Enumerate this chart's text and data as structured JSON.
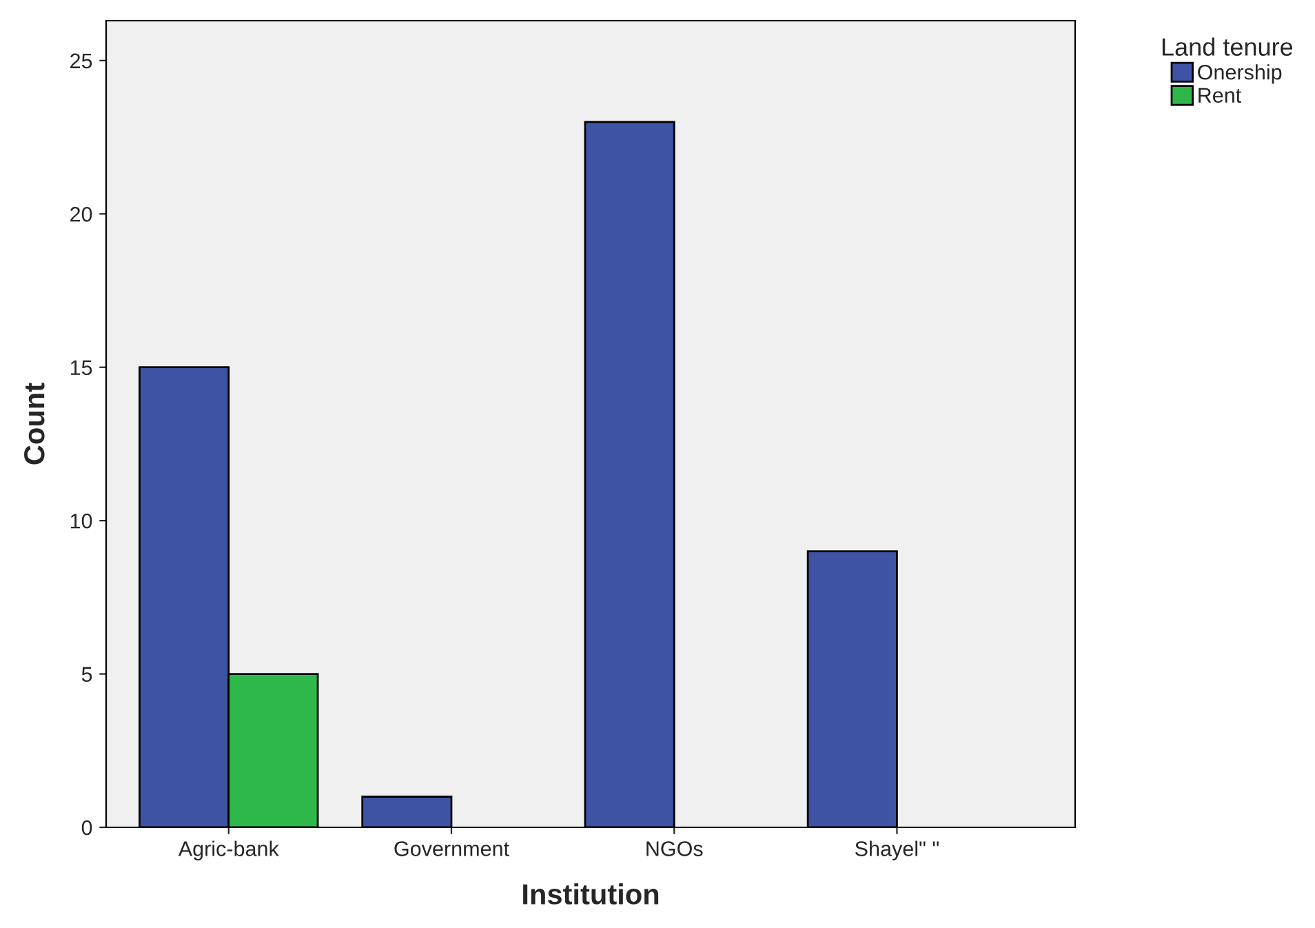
{
  "chart_data": {
    "type": "bar",
    "xlabel": "Institution",
    "ylabel": "Count",
    "legend_title": "Land tenure",
    "categories": [
      "Agric-bank",
      "Government",
      "NGOs",
      "Shayel\" \""
    ],
    "series": [
      {
        "name": "Onership",
        "color": "#3e53a4",
        "values": [
          15,
          1,
          23,
          9
        ]
      },
      {
        "name": "Rent",
        "color": "#2fb84a",
        "values": [
          5,
          null,
          null,
          null
        ]
      }
    ],
    "ylim": [
      0,
      26.3
    ],
    "yticks": [
      0,
      5,
      10,
      15,
      20,
      25
    ],
    "grid": false,
    "legend": "top right"
  }
}
